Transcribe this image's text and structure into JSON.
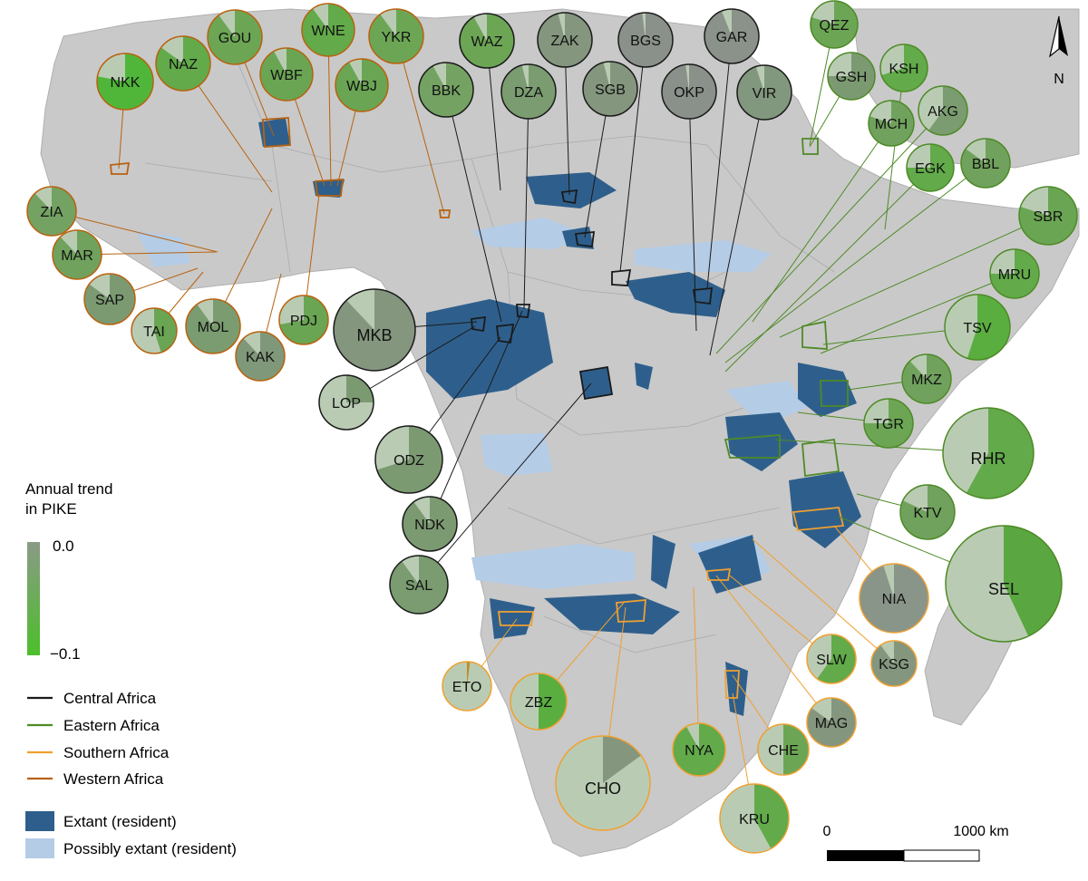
{
  "legend": {
    "trend_title_line1": "Annual trend",
    "trend_title_line2": "in PIKE",
    "scale_max_label": "0.0",
    "scale_min_label": "−0.1",
    "scale_color_top": "#8a9a86",
    "scale_color_bottom": "#4cbf2a",
    "regions": [
      {
        "label": "Central Africa",
        "color": "#1a1a1a"
      },
      {
        "label": "Eastern Africa",
        "color": "#4e8a26"
      },
      {
        "label": "Southern Africa",
        "color": "#f0a030"
      },
      {
        "label": "Western Africa",
        "color": "#b8620f"
      }
    ],
    "range_classes": [
      {
        "label": "Extant (resident)",
        "color": "#2e5f8c"
      },
      {
        "label": "Possibly extant (resident)",
        "color": "#b4cce6"
      }
    ]
  },
  "scale_bar": {
    "start_label": "0",
    "end_label": "1000 km"
  },
  "north_arrow": {
    "label": "N"
  },
  "colors": {
    "background": "#ffffff",
    "land": "#c9c9c9",
    "border": "#a9a9a9",
    "extant": "#2e5f8c",
    "possibly_extant": "#b4cce6",
    "pie_light": "#b9ccb3"
  },
  "sites": [
    {
      "code": "NKK",
      "region": "Western Africa",
      "fill": "#4fb63a",
      "frac": 0.22
    },
    {
      "code": "NAZ",
      "region": "Western Africa",
      "fill": "#62aa4a",
      "frac": 0.15
    },
    {
      "code": "GOU",
      "region": "Western Africa",
      "fill": "#6ca655",
      "frac": 0.1
    },
    {
      "code": "WNE",
      "region": "Western Africa",
      "fill": "#62aa4a",
      "frac": 0.1
    },
    {
      "code": "YKR",
      "region": "Western Africa",
      "fill": "#6ca655",
      "frac": 0.1
    },
    {
      "code": "WBF",
      "region": "Western Africa",
      "fill": "#6aa553",
      "frac": 0.08
    },
    {
      "code": "WBJ",
      "region": "Western Africa",
      "fill": "#6aa553",
      "frac": 0.08
    },
    {
      "code": "ZIA",
      "region": "Western Africa",
      "fill": "#74a263",
      "frac": 0.12
    },
    {
      "code": "MAR",
      "region": "Western Africa",
      "fill": "#70a25d",
      "frac": 0.12
    },
    {
      "code": "SAP",
      "region": "Western Africa",
      "fill": "#7c9a72",
      "frac": 0.15
    },
    {
      "code": "TAI",
      "region": "Western Africa",
      "fill": "#6aa553",
      "frac": 0.55
    },
    {
      "code": "MOL",
      "region": "Western Africa",
      "fill": "#7a9c70",
      "frac": 0.1
    },
    {
      "code": "PDJ",
      "region": "Western Africa",
      "fill": "#6aa553",
      "frac": 0.28
    },
    {
      "code": "KAK",
      "region": "Western Africa",
      "fill": "#80987a",
      "frac": 0.12
    },
    {
      "code": "WAZ",
      "region": "Central Africa",
      "fill": "#6ca655",
      "frac": 0.08
    },
    {
      "code": "ZAK",
      "region": "Central Africa",
      "fill": "#84967e",
      "frac": 0.04
    },
    {
      "code": "BGS",
      "region": "Central Africa",
      "fill": "#8a908a",
      "frac": 0.02
    },
    {
      "code": "GAR",
      "region": "Central Africa",
      "fill": "#8a928a",
      "frac": 0.06
    },
    {
      "code": "BBK",
      "region": "Central Africa",
      "fill": "#74a263",
      "frac": 0.08
    },
    {
      "code": "DZA",
      "region": "Central Africa",
      "fill": "#7a9c70",
      "frac": 0.04
    },
    {
      "code": "SGB",
      "region": "Central Africa",
      "fill": "#84967e",
      "frac": 0.04
    },
    {
      "code": "OKP",
      "region": "Central Africa",
      "fill": "#8a908a",
      "frac": 0.02
    },
    {
      "code": "VIR",
      "region": "Central Africa",
      "fill": "#82987e",
      "frac": 0.05
    },
    {
      "code": "MKB",
      "region": "Central Africa",
      "fill": "#84967e",
      "frac": 0.12
    },
    {
      "code": "LOP",
      "region": "Central Africa",
      "fill": "#7c9a72",
      "frac": 0.75
    },
    {
      "code": "ODZ",
      "region": "Central Africa",
      "fill": "#7c9a72",
      "frac": 0.3
    },
    {
      "code": "NDK",
      "region": "Central Africa",
      "fill": "#7c9a72",
      "frac": 0.1
    },
    {
      "code": "SAL",
      "region": "Central Africa",
      "fill": "#7a9c70",
      "frac": 0.1
    },
    {
      "code": "QEZ",
      "region": "Eastern Africa",
      "fill": "#6ca655",
      "frac": 0.2
    },
    {
      "code": "GSH",
      "region": "Eastern Africa",
      "fill": "#7c9a72",
      "frac": 0.25
    },
    {
      "code": "KSH",
      "region": "Eastern Africa",
      "fill": "#62aa4a",
      "frac": 0.3
    },
    {
      "code": "MCH",
      "region": "Eastern Africa",
      "fill": "#70a25d",
      "frac": 0.2
    },
    {
      "code": "AKG",
      "region": "Eastern Africa",
      "fill": "#7a9c70",
      "frac": 0.4
    },
    {
      "code": "EGK",
      "region": "Eastern Africa",
      "fill": "#62aa4a",
      "frac": 0.25
    },
    {
      "code": "BBL",
      "region": "Eastern Africa",
      "fill": "#70a25d",
      "frac": 0.15
    },
    {
      "code": "SBR",
      "region": "Eastern Africa",
      "fill": "#6aa553",
      "frac": 0.2
    },
    {
      "code": "MRU",
      "region": "Eastern Africa",
      "fill": "#62aa4a",
      "frac": 0.25
    },
    {
      "code": "TSV",
      "region": "Eastern Africa",
      "fill": "#5aae40",
      "frac": 0.45
    },
    {
      "code": "MKZ",
      "region": "Eastern Africa",
      "fill": "#70a25d",
      "frac": 0.12
    },
    {
      "code": "TGR",
      "region": "Eastern Africa",
      "fill": "#6ca655",
      "frac": 0.25
    },
    {
      "code": "RHR",
      "region": "Eastern Africa",
      "fill": "#62aa4a",
      "frac": 0.42
    },
    {
      "code": "KTV",
      "region": "Eastern Africa",
      "fill": "#70a25d",
      "frac": 0.18
    },
    {
      "code": "SEL",
      "region": "Eastern Africa",
      "fill": "#5aa640",
      "frac": 0.57
    },
    {
      "code": "NIA",
      "region": "Southern Africa",
      "fill": "#8a958a",
      "frac": 0.05
    },
    {
      "code": "KSG",
      "region": "Southern Africa",
      "fill": "#84967e",
      "frac": 0.1
    },
    {
      "code": "SLW",
      "region": "Southern Africa",
      "fill": "#62aa4a",
      "frac": 0.4
    },
    {
      "code": "MAG",
      "region": "Southern Africa",
      "fill": "#84967e",
      "frac": 0.15
    },
    {
      "code": "CHE",
      "region": "Southern Africa",
      "fill": "#6ca655",
      "frac": 0.5
    },
    {
      "code": "KRU",
      "region": "Southern Africa",
      "fill": "#62aa4a",
      "frac": 0.58
    },
    {
      "code": "NYA",
      "region": "Southern Africa",
      "fill": "#62aa4a",
      "frac": 0.08
    },
    {
      "code": "CHO",
      "region": "Southern Africa",
      "fill": "#84967e",
      "frac": 0.85
    },
    {
      "code": "ZBZ",
      "region": "Southern Africa",
      "fill": "#5aae40",
      "frac": 0.5
    },
    {
      "code": "ETO",
      "region": "Southern Africa",
      "fill": "#c08a2a",
      "frac": 0.98
    }
  ]
}
